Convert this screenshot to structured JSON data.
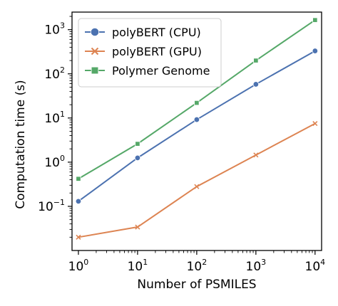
{
  "chart_data": {
    "type": "line",
    "xlabel": "Number of PSMILES",
    "ylabel": "Computation time (s)",
    "xscale": "log",
    "yscale": "log",
    "xlim": [
      0.78,
      12900
    ],
    "ylim": [
      0.01,
      2500
    ],
    "x_ticks": [
      {
        "value": 1,
        "base": "10",
        "exp": "0"
      },
      {
        "value": 10,
        "base": "10",
        "exp": "1"
      },
      {
        "value": 100,
        "base": "10",
        "exp": "2"
      },
      {
        "value": 1000,
        "base": "10",
        "exp": "3"
      },
      {
        "value": 10000,
        "base": "10",
        "exp": "4"
      }
    ],
    "y_ticks": [
      {
        "value": 0.1,
        "base": "10",
        "exp": "−1"
      },
      {
        "value": 1,
        "base": "10",
        "exp": "0"
      },
      {
        "value": 10,
        "base": "10",
        "exp": "1"
      },
      {
        "value": 100,
        "base": "10",
        "exp": "2"
      },
      {
        "value": 1000,
        "base": "10",
        "exp": "3"
      }
    ],
    "grid": false,
    "legend_position": "top-left",
    "x": [
      1,
      10,
      100,
      1000,
      10000
    ],
    "series": [
      {
        "name": "polyBERT (CPU)",
        "color": "#4c72b0",
        "marker": "circle",
        "values": [
          0.13,
          1.25,
          9.2,
          58,
          330
        ]
      },
      {
        "name": "polyBERT (GPU)",
        "color": "#dd8452",
        "marker": "x",
        "values": [
          0.02,
          0.034,
          0.28,
          1.45,
          7.5
        ]
      },
      {
        "name": "Polymer Genome",
        "color": "#55a868",
        "marker": "square",
        "values": [
          0.42,
          2.6,
          22,
          200,
          1650
        ]
      }
    ]
  }
}
